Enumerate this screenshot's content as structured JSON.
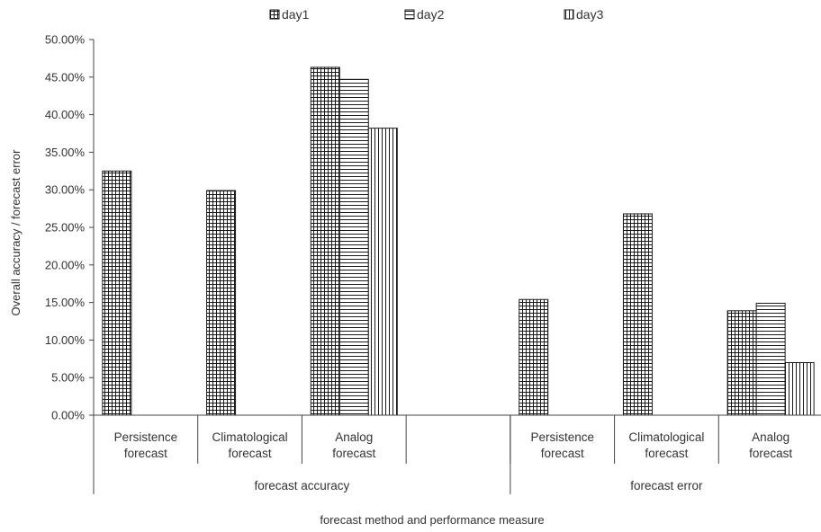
{
  "chart_data": {
    "type": "bar",
    "title": "",
    "ylabel": "Overall accuracy / forecast error",
    "xlabel": "forecast method and performance measure",
    "ylim": [
      0,
      0.5
    ],
    "y_ticks": [
      "0.00%",
      "5.00%",
      "10.00%",
      "15.00%",
      "20.00%",
      "25.00%",
      "30.00%",
      "35.00%",
      "40.00%",
      "45.00%",
      "50.00%"
    ],
    "grid": false,
    "legend_position": "top",
    "groups": [
      {
        "label": "forecast accuracy",
        "categories": [
          {
            "label": [
              "Persistence",
              "forecast"
            ]
          },
          {
            "label": [
              "Climatological",
              "forecast"
            ]
          },
          {
            "label": [
              "Analog",
              "forecast"
            ]
          },
          {
            "label": [
              "",
              ""
            ]
          }
        ]
      },
      {
        "label": "forecast error",
        "categories": [
          {
            "label": [
              "Persistence",
              "forecast"
            ]
          },
          {
            "label": [
              "Climatological",
              "forecast"
            ]
          },
          {
            "label": [
              "Analog",
              "forecast"
            ]
          }
        ]
      }
    ],
    "series": [
      {
        "name": "day1",
        "pattern": "grid",
        "values": [
          0.325,
          0.299,
          0.463,
          null,
          0.154,
          0.268,
          0.139
        ]
      },
      {
        "name": "day2",
        "pattern": "horizontal",
        "values": [
          null,
          null,
          0.447,
          null,
          null,
          null,
          0.149
        ]
      },
      {
        "name": "day3",
        "pattern": "vertical",
        "values": [
          null,
          null,
          0.382,
          null,
          null,
          null,
          0.07
        ]
      }
    ]
  }
}
